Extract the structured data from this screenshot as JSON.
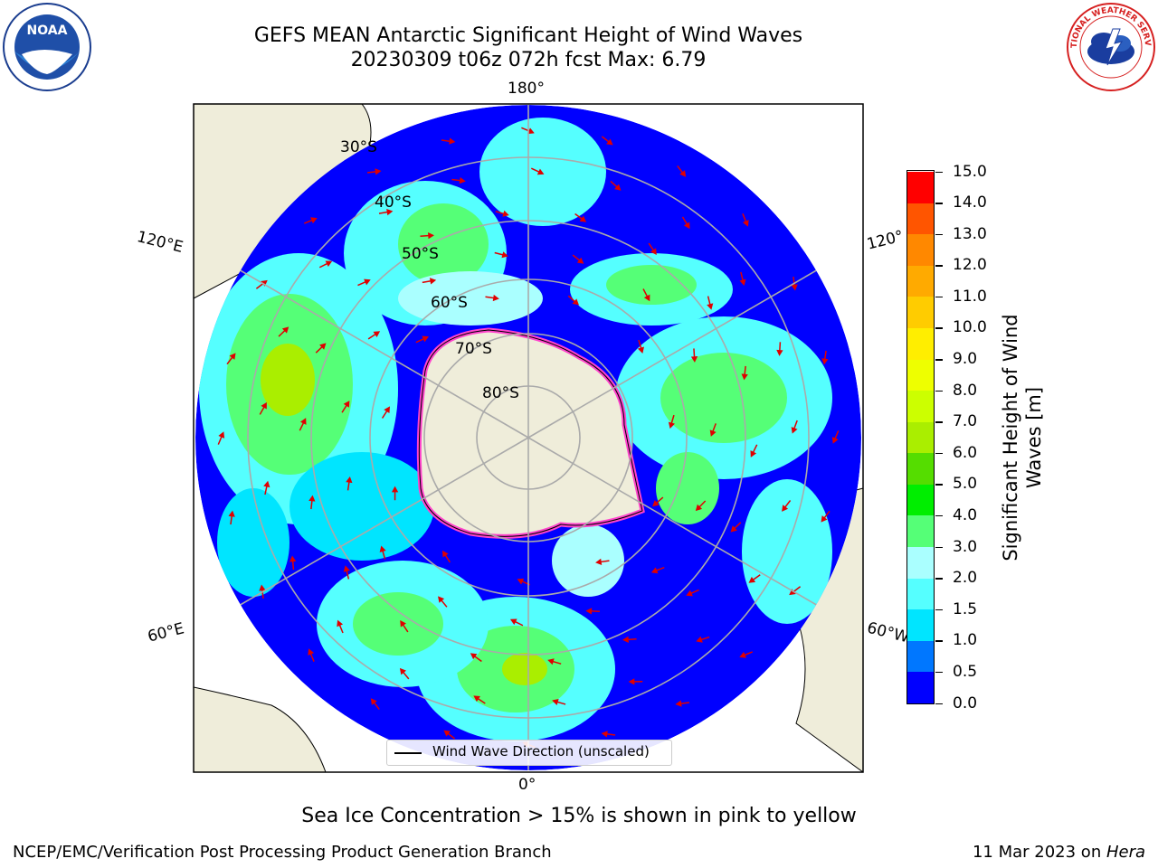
{
  "title": {
    "line1": "GEFS MEAN Antarctic Significant Height of Wind Waves",
    "line2": "20230309 t06z 072h fcst   Max: 6.79"
  },
  "logos": {
    "left": "NOAA",
    "right": "NATIONAL WEATHER SERVICE"
  },
  "map": {
    "projection": "south polar stereographic",
    "longitude_labels": [
      "180°",
      "120°E",
      "120°",
      "60°E",
      "60°W",
      "0°"
    ],
    "latitude_labels": [
      "30°S",
      "40°S",
      "50°S",
      "60°S",
      "70°S",
      "80°S"
    ],
    "legend_label": "Wind Wave Direction (unscaled)",
    "colors": {
      "land": "#efedda",
      "ocean_low": "#0000ff",
      "arrow": "#e00000",
      "grid": "#aaaaaa",
      "sea_ice": "#ff44cc"
    }
  },
  "colorbar": {
    "label": "Significant Height of Wind Waves [m]",
    "levels": [
      0.0,
      0.5,
      1.0,
      1.5,
      2.0,
      3.0,
      4.0,
      5.0,
      6.0,
      7.0,
      8.0,
      9.0,
      10.0,
      11.0,
      12.0,
      13.0,
      14.0,
      15.0
    ],
    "tick_labels": [
      "0.0",
      "0.5",
      "1.0",
      "1.5",
      "2.0",
      "3.0",
      "4.0",
      "5.0",
      "6.0",
      "7.0",
      "8.0",
      "9.0",
      "10.0",
      "11.0",
      "12.0",
      "13.0",
      "14.0",
      "15.0"
    ],
    "colors": [
      "#0000ff",
      "#0077ff",
      "#00e5ff",
      "#55ffff",
      "#aaffff",
      "#55ff77",
      "#00ee00",
      "#55dd00",
      "#aaee00",
      "#ccff00",
      "#eeff00",
      "#ffee00",
      "#ffcc00",
      "#ffaa00",
      "#ff8800",
      "#ff5500",
      "#ff0000"
    ]
  },
  "captions": {
    "sea_ice": "Sea Ice Concentration > 15% is shown in pink to yellow",
    "footer_left": "NCEP/EMC/Verification Post Processing Product Generation Branch",
    "footer_date": "11 Mar 2023 on ",
    "footer_machine": "Hera"
  }
}
